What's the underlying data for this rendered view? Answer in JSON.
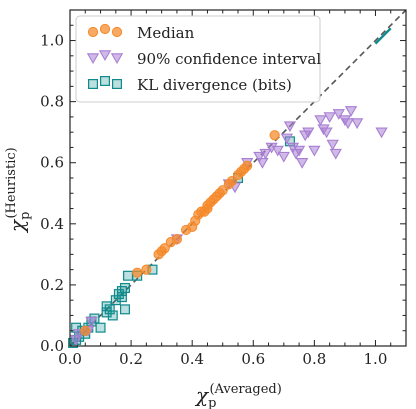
{
  "chart_data": {
    "type": "scatter",
    "title": "",
    "xlabel": {
      "main": "χ",
      "sub": "p",
      "sup": "(Averaged)"
    },
    "ylabel": {
      "main": "χ",
      "sub": "p",
      "sup": "(Heuristic)"
    },
    "xlim": [
      0.0,
      1.1
    ],
    "ylim": [
      0.0,
      1.1
    ],
    "xticks": [
      0.0,
      0.2,
      0.4,
      0.6,
      0.8,
      1.0
    ],
    "yticks": [
      0.0,
      0.2,
      0.4,
      0.6,
      0.8,
      1.0
    ],
    "xtick_labels": [
      "0.0",
      "0.2",
      "0.4",
      "0.6",
      "0.8",
      "1.0"
    ],
    "ytick_labels": [
      "0.0",
      "0.2",
      "0.4",
      "0.6",
      "0.8",
      "1.0"
    ],
    "grid": false,
    "legend_position": "top-left",
    "reference_line": {
      "style": "dashed",
      "color": "#555555",
      "from": [
        0.0,
        0.0
      ],
      "to": [
        1.1,
        1.1
      ]
    },
    "series": [
      {
        "name": "Median",
        "marker": "circle",
        "color": "#f5892a",
        "points": [
          [
            0.05,
            0.05
          ],
          [
            0.22,
            0.24
          ],
          [
            0.25,
            0.25
          ],
          [
            0.29,
            0.3
          ],
          [
            0.3,
            0.31
          ],
          [
            0.31,
            0.32
          ],
          [
            0.33,
            0.34
          ],
          [
            0.35,
            0.35
          ],
          [
            0.38,
            0.38
          ],
          [
            0.4,
            0.39
          ],
          [
            0.41,
            0.41
          ],
          [
            0.42,
            0.43
          ],
          [
            0.43,
            0.44
          ],
          [
            0.44,
            0.44
          ],
          [
            0.45,
            0.45
          ],
          [
            0.45,
            0.46
          ],
          [
            0.46,
            0.47
          ],
          [
            0.47,
            0.48
          ],
          [
            0.48,
            0.49
          ],
          [
            0.49,
            0.5
          ],
          [
            0.5,
            0.51
          ],
          [
            0.52,
            0.53
          ],
          [
            0.53,
            0.54
          ],
          [
            0.55,
            0.56
          ],
          [
            0.56,
            0.57
          ],
          [
            0.57,
            0.58
          ],
          [
            0.58,
            0.59
          ],
          [
            0.67,
            0.69
          ]
        ]
      },
      {
        "name": "90% confidence interval",
        "marker": "triangle-down",
        "color": "#a87fd3",
        "points": [
          [
            0.02,
            0.02
          ],
          [
            0.03,
            0.04
          ],
          [
            0.06,
            0.05
          ],
          [
            0.07,
            0.08
          ],
          [
            0.35,
            0.35
          ],
          [
            0.52,
            0.53
          ],
          [
            0.54,
            0.52
          ],
          [
            0.58,
            0.6
          ],
          [
            0.62,
            0.62
          ],
          [
            0.63,
            0.6
          ],
          [
            0.64,
            0.63
          ],
          [
            0.66,
            0.65
          ],
          [
            0.68,
            0.64
          ],
          [
            0.7,
            0.62
          ],
          [
            0.71,
            0.68
          ],
          [
            0.72,
            0.72
          ],
          [
            0.73,
            0.65
          ],
          [
            0.74,
            0.63
          ],
          [
            0.75,
            0.64
          ],
          [
            0.76,
            0.6
          ],
          [
            0.77,
            0.69
          ],
          [
            0.78,
            0.7
          ],
          [
            0.8,
            0.64
          ],
          [
            0.82,
            0.74
          ],
          [
            0.83,
            0.71
          ],
          [
            0.84,
            0.7
          ],
          [
            0.85,
            0.75
          ],
          [
            0.86,
            0.66
          ],
          [
            0.87,
            0.63
          ],
          [
            0.88,
            0.76
          ],
          [
            0.9,
            0.74
          ],
          [
            0.91,
            0.73
          ],
          [
            0.92,
            0.77
          ],
          [
            0.94,
            0.73
          ],
          [
            1.02,
            0.7
          ]
        ]
      },
      {
        "name": "KL divergence (bits)",
        "marker": "square",
        "color": "#0f8b8d",
        "points": [
          [
            0.01,
            0.01
          ],
          [
            0.02,
            0.02
          ],
          [
            0.02,
            0.06
          ],
          [
            0.03,
            0.03
          ],
          [
            0.04,
            0.05
          ],
          [
            0.05,
            0.04
          ],
          [
            0.06,
            0.06
          ],
          [
            0.07,
            0.08
          ],
          [
            0.08,
            0.09
          ],
          [
            0.1,
            0.06
          ],
          [
            0.12,
            0.11
          ],
          [
            0.12,
            0.13
          ],
          [
            0.13,
            0.12
          ],
          [
            0.14,
            0.1
          ],
          [
            0.15,
            0.15
          ],
          [
            0.16,
            0.17
          ],
          [
            0.17,
            0.16
          ],
          [
            0.17,
            0.18
          ],
          [
            0.18,
            0.12
          ],
          [
            0.18,
            0.19
          ],
          [
            0.19,
            0.23
          ],
          [
            0.22,
            0.23
          ],
          [
            0.27,
            0.25
          ],
          [
            0.55,
            0.55
          ],
          [
            0.72,
            0.67
          ]
        ],
        "segment": {
          "from": [
            1.0,
            0.99
          ],
          "to": [
            1.05,
            1.04
          ]
        }
      }
    ]
  }
}
